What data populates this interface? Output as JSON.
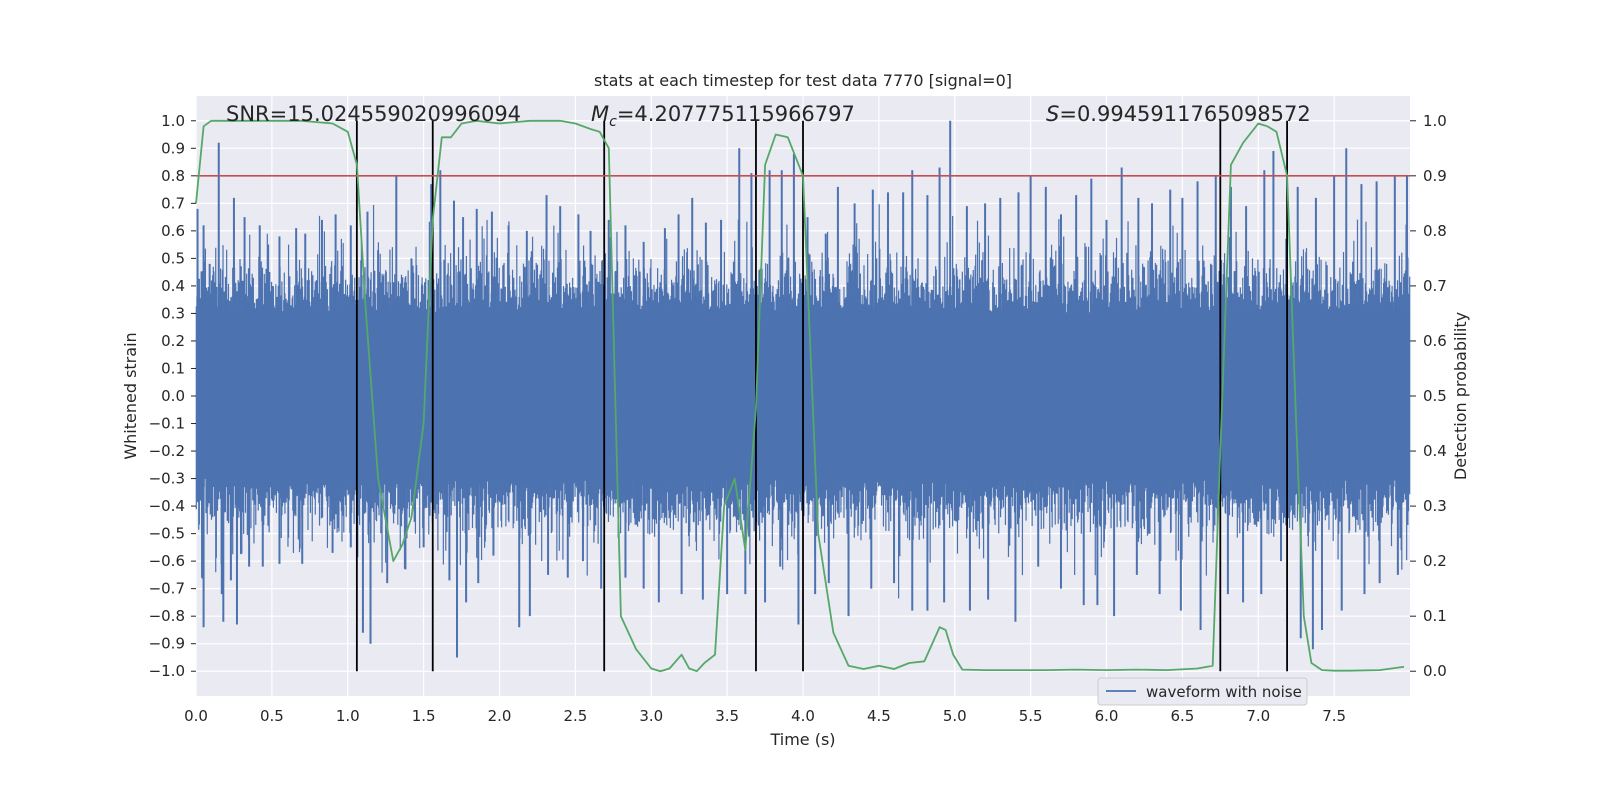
{
  "chart_data": {
    "type": "line",
    "title": "stats at each timestep for test data 7770 [signal=0]",
    "xlabel": "Time (s)",
    "ylabel_left": "Whitened strain",
    "ylabel_right": "Detection probability",
    "xlim": [
      0.0,
      8.0
    ],
    "ylim_left": [
      -1.09,
      1.09
    ],
    "ylim_right": [
      -0.045,
      1.045
    ],
    "x_ticks": [
      "0.0",
      "0.5",
      "1.0",
      "1.5",
      "2.0",
      "2.5",
      "3.0",
      "3.5",
      "4.0",
      "4.5",
      "5.0",
      "5.5",
      "6.0",
      "6.5",
      "7.0",
      "7.5"
    ],
    "y_ticks_left": [
      "1.0",
      "0.9",
      "0.8",
      "0.7",
      "0.6",
      "0.5",
      "0.4",
      "0.3",
      "0.2",
      "0.1",
      "0.0",
      "−0.1",
      "−0.2",
      "−0.3",
      "−0.4",
      "−0.5",
      "−0.6",
      "−0.7",
      "−0.8",
      "−0.9",
      "−1.0"
    ],
    "y_ticks_right": [
      "1.0",
      "0.9",
      "0.8",
      "0.7",
      "0.6",
      "0.5",
      "0.4",
      "0.3",
      "0.2",
      "0.1",
      "0.0"
    ],
    "annotations": {
      "snr": "SNR=15.024559020996094",
      "mc_symbol": "M",
      "mc_subscript": "c",
      "mc_value": "=4.207775115966797",
      "s_symbol": "S",
      "s_value": "=0.9945911765098572"
    },
    "threshold": {
      "value": 0.8,
      "axis": "left",
      "color": "#c44e52"
    },
    "vertical_lines": {
      "x": [
        1.06,
        1.56,
        2.69,
        3.69,
        4.0,
        6.75,
        7.19
      ],
      "ymin": -1.0,
      "ymax": 1.0,
      "color": "#000000"
    },
    "series": [
      {
        "name": "waveform with noise",
        "color": "#4c72b0",
        "axis": "left",
        "kind": "noise",
        "spikes": [
          [
            0.01,
            0.68
          ],
          [
            0.05,
            0.62
          ],
          [
            0.09,
            0.48
          ],
          [
            0.15,
            0.92
          ],
          [
            0.25,
            0.72
          ],
          [
            0.32,
            0.65
          ],
          [
            0.42,
            0.62
          ],
          [
            0.55,
            0.58
          ],
          [
            0.66,
            0.61
          ],
          [
            0.72,
            0.59
          ],
          [
            0.83,
            0.64
          ],
          [
            0.92,
            0.66
          ],
          [
            1.02,
            0.62
          ],
          [
            1.13,
            0.67
          ],
          [
            1.2,
            0.53
          ],
          [
            1.32,
            0.8
          ],
          [
            1.42,
            0.5
          ],
          [
            1.55,
            0.77
          ],
          [
            1.61,
            0.82
          ],
          [
            1.7,
            0.71
          ],
          [
            1.76,
            0.65
          ],
          [
            1.85,
            0.68
          ],
          [
            1.95,
            0.67
          ],
          [
            2.06,
            0.62
          ],
          [
            2.18,
            0.6
          ],
          [
            2.31,
            0.73
          ],
          [
            2.4,
            0.69
          ],
          [
            2.52,
            0.66
          ],
          [
            2.6,
            0.6
          ],
          [
            2.72,
            0.64
          ],
          [
            2.83,
            0.62
          ],
          [
            2.95,
            0.56
          ],
          [
            3.09,
            0.61
          ],
          [
            3.18,
            0.66
          ],
          [
            3.27,
            0.72
          ],
          [
            3.36,
            0.63
          ],
          [
            3.46,
            0.64
          ],
          [
            3.58,
            0.9
          ],
          [
            3.66,
            0.81
          ],
          [
            3.78,
            0.82
          ],
          [
            3.86,
            0.82
          ],
          [
            3.94,
            0.88
          ],
          [
            4.03,
            0.65
          ],
          [
            4.15,
            0.59
          ],
          [
            4.23,
            0.76
          ],
          [
            4.34,
            0.7
          ],
          [
            4.46,
            0.75
          ],
          [
            4.56,
            0.74
          ],
          [
            4.66,
            0.74
          ],
          [
            4.72,
            0.82
          ],
          [
            4.82,
            0.73
          ],
          [
            4.9,
            0.83
          ],
          [
            4.97,
            1.0
          ],
          [
            5.08,
            0.69
          ],
          [
            5.2,
            0.7
          ],
          [
            5.3,
            0.72
          ],
          [
            5.42,
            0.74
          ],
          [
            5.5,
            0.8
          ],
          [
            5.6,
            0.76
          ],
          [
            5.7,
            0.66
          ],
          [
            5.8,
            0.73
          ],
          [
            5.9,
            0.79
          ],
          [
            6.0,
            0.64
          ],
          [
            6.1,
            0.83
          ],
          [
            6.21,
            0.72
          ],
          [
            6.3,
            0.7
          ],
          [
            6.42,
            0.75
          ],
          [
            6.5,
            0.72
          ],
          [
            6.6,
            0.78
          ],
          [
            6.72,
            0.8
          ],
          [
            6.82,
            0.76
          ],
          [
            6.92,
            0.69
          ],
          [
            7.04,
            0.82
          ],
          [
            7.1,
            0.89
          ],
          [
            7.26,
            0.76
          ],
          [
            7.38,
            0.72
          ],
          [
            7.5,
            0.8
          ],
          [
            7.58,
            0.9
          ],
          [
            7.68,
            0.77
          ],
          [
            7.78,
            0.78
          ],
          [
            7.9,
            0.8
          ],
          [
            7.98,
            0.8
          ]
        ],
        "dips": [
          [
            0.04,
            -0.66
          ],
          [
            0.05,
            -0.84
          ],
          [
            0.17,
            -0.72
          ],
          [
            0.18,
            -0.82
          ],
          [
            0.23,
            -0.67
          ],
          [
            0.27,
            -0.83
          ],
          [
            0.35,
            -0.62
          ],
          [
            0.44,
            -0.62
          ],
          [
            0.55,
            -0.61
          ],
          [
            0.7,
            -0.61
          ],
          [
            0.9,
            -0.57
          ],
          [
            1.02,
            -0.55
          ],
          [
            1.1,
            -0.86
          ],
          [
            1.15,
            -0.9
          ],
          [
            1.26,
            -0.68
          ],
          [
            1.38,
            -0.63
          ],
          [
            1.5,
            -0.55
          ],
          [
            1.67,
            -0.67
          ],
          [
            1.72,
            -0.95
          ],
          [
            1.78,
            -0.75
          ],
          [
            1.86,
            -0.68
          ],
          [
            1.96,
            -0.58
          ],
          [
            2.13,
            -0.84
          ],
          [
            2.2,
            -0.8
          ],
          [
            2.32,
            -0.65
          ],
          [
            2.45,
            -0.66
          ],
          [
            2.55,
            -0.6
          ],
          [
            2.67,
            -0.7
          ],
          [
            2.83,
            -0.66
          ],
          [
            2.95,
            -0.7
          ],
          [
            3.05,
            -0.75
          ],
          [
            3.2,
            -0.72
          ],
          [
            3.34,
            -0.74
          ],
          [
            3.5,
            -0.72
          ],
          [
            3.62,
            -0.72
          ],
          [
            3.75,
            -0.75
          ],
          [
            3.85,
            -0.62
          ],
          [
            3.97,
            -0.83
          ],
          [
            4.08,
            -0.72
          ],
          [
            4.17,
            -0.68
          ],
          [
            4.3,
            -0.8
          ],
          [
            4.45,
            -0.7
          ],
          [
            4.6,
            -0.68
          ],
          [
            4.72,
            -0.78
          ],
          [
            4.82,
            -0.78
          ],
          [
            4.93,
            -0.75
          ],
          [
            5.1,
            -0.78
          ],
          [
            5.22,
            -0.74
          ],
          [
            5.4,
            -0.82
          ],
          [
            5.55,
            -0.62
          ],
          [
            5.7,
            -0.7
          ],
          [
            5.85,
            -0.76
          ],
          [
            5.94,
            -0.76
          ],
          [
            6.05,
            -0.8
          ],
          [
            6.2,
            -0.65
          ],
          [
            6.35,
            -0.72
          ],
          [
            6.49,
            -0.78
          ],
          [
            6.62,
            -0.85
          ],
          [
            6.8,
            -0.72
          ],
          [
            6.9,
            -0.75
          ],
          [
            7.02,
            -0.72
          ],
          [
            7.15,
            -0.6
          ],
          [
            7.28,
            -0.88
          ],
          [
            7.36,
            -0.92
          ],
          [
            7.42,
            -0.85
          ],
          [
            7.55,
            -0.78
          ],
          [
            7.7,
            -0.72
          ],
          [
            7.8,
            -0.68
          ],
          [
            7.92,
            -0.65
          ]
        ]
      },
      {
        "name": "Detection probability",
        "color": "#55a868",
        "axis": "right",
        "kind": "line",
        "x": [
          0.0,
          0.05,
          0.1,
          0.2,
          0.3,
          0.5,
          0.7,
          0.9,
          1.0,
          1.06,
          1.12,
          1.2,
          1.3,
          1.36,
          1.42,
          1.5,
          1.56,
          1.62,
          1.68,
          1.75,
          1.85,
          2.0,
          2.2,
          2.4,
          2.5,
          2.6,
          2.66,
          2.72,
          2.8,
          2.9,
          3.0,
          3.06,
          3.12,
          3.2,
          3.25,
          3.3,
          3.35,
          3.42,
          3.48,
          3.55,
          3.62,
          3.69,
          3.75,
          3.82,
          3.9,
          4.0,
          4.1,
          4.2,
          4.3,
          4.4,
          4.5,
          4.6,
          4.7,
          4.8,
          4.9,
          4.94,
          4.99,
          5.05,
          5.2,
          5.4,
          5.6,
          5.8,
          6.0,
          6.2,
          6.4,
          6.6,
          6.7,
          6.75,
          6.82,
          6.9,
          7.0,
          7.06,
          7.12,
          7.19,
          7.25,
          7.3,
          7.35,
          7.42,
          7.5,
          7.6,
          7.8,
          7.96
        ],
        "y": [
          0.85,
          0.99,
          1.0,
          1.0,
          1.0,
          1.0,
          1.0,
          0.995,
          0.98,
          0.92,
          0.65,
          0.35,
          0.2,
          0.23,
          0.28,
          0.45,
          0.82,
          0.97,
          0.97,
          0.995,
          1.0,
          0.995,
          1.0,
          1.0,
          0.995,
          0.985,
          0.98,
          0.95,
          0.1,
          0.04,
          0.005,
          0.0,
          0.005,
          0.03,
          0.005,
          0.0,
          0.015,
          0.03,
          0.3,
          0.35,
          0.22,
          0.48,
          0.92,
          0.975,
          0.97,
          0.9,
          0.25,
          0.07,
          0.01,
          0.004,
          0.01,
          0.004,
          0.015,
          0.018,
          0.08,
          0.075,
          0.03,
          0.003,
          0.002,
          0.002,
          0.002,
          0.003,
          0.002,
          0.003,
          0.002,
          0.005,
          0.01,
          0.4,
          0.92,
          0.96,
          0.995,
          0.99,
          0.98,
          0.9,
          0.45,
          0.1,
          0.015,
          0.002,
          0.001,
          0.001,
          0.002,
          0.008
        ]
      }
    ],
    "legend": {
      "entries": [
        "waveform with noise"
      ],
      "placement": "lower-right"
    }
  }
}
